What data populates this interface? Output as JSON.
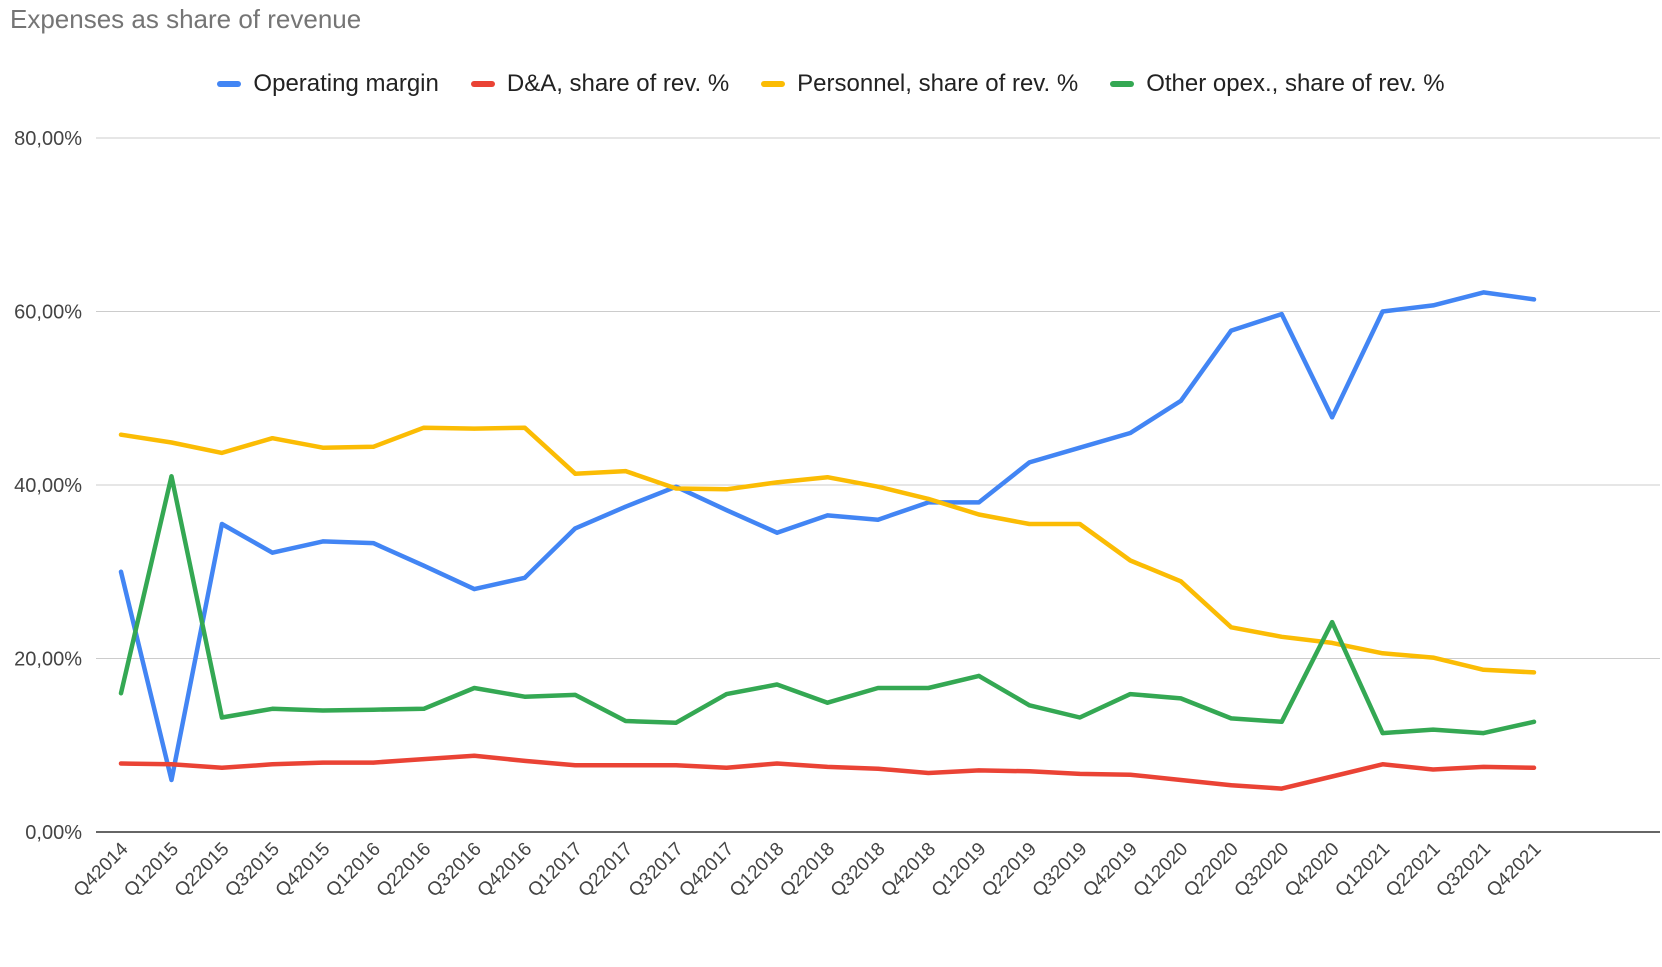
{
  "chart_data": {
    "type": "line",
    "title": "Expenses as share of revenue",
    "xlabel": "",
    "ylabel": "",
    "ylim": [
      0,
      80
    ],
    "y_ticks": [
      0,
      20,
      40,
      60,
      80
    ],
    "y_tick_labels": [
      "0,00%",
      "20,00%",
      "40,00%",
      "60,00%",
      "80,00%"
    ],
    "grid": true,
    "legend_position": "top",
    "categories": [
      "Q42014",
      "Q12015",
      "Q22015",
      "Q32015",
      "Q42015",
      "Q12016",
      "Q22016",
      "Q32016",
      "Q42016",
      "Q12017",
      "Q22017",
      "Q32017",
      "Q42017",
      "Q12018",
      "Q22018",
      "Q32018",
      "Q42018",
      "Q12019",
      "Q22019",
      "Q32019",
      "Q42019",
      "Q12020",
      "Q22020",
      "Q32020",
      "Q42020",
      "Q12021",
      "Q22021",
      "Q32021",
      "Q42021"
    ],
    "series": [
      {
        "name": "Operating margin",
        "color": "#4285F4",
        "values": [
          30,
          6,
          35.5,
          32.2,
          33.5,
          33.3,
          30.7,
          28,
          29.3,
          35,
          37.5,
          39.8,
          37.1,
          34.5,
          36.5,
          36,
          38,
          38,
          42.6,
          44.3,
          46,
          49.7,
          57.8,
          59.7,
          47.8,
          60,
          60.7,
          62.2,
          61.4
        ]
      },
      {
        "name": "D&A, share of rev. %",
        "color": "#EA4335",
        "values": [
          7.9,
          7.8,
          7.4,
          7.8,
          8,
          8,
          8.4,
          8.8,
          8.2,
          7.7,
          7.7,
          7.7,
          7.4,
          7.9,
          7.5,
          7.3,
          6.8,
          7.1,
          7.0,
          6.7,
          6.6,
          6,
          5.4,
          5,
          6.4,
          7.8,
          7.2,
          7.5,
          7.4
        ]
      },
      {
        "name": "Personnel, share of rev. %",
        "color": "#FBBC04",
        "values": [
          45.8,
          44.9,
          43.7,
          45.4,
          44.3,
          44.4,
          46.6,
          46.5,
          46.6,
          41.3,
          41.6,
          39.6,
          39.5,
          40.3,
          40.9,
          39.8,
          38.4,
          36.6,
          35.5,
          35.5,
          31.3,
          28.9,
          23.6,
          22.5,
          21.8,
          20.6,
          20.1,
          18.7,
          18.4
        ]
      },
      {
        "name": "Other opex., share of rev. %",
        "color": "#34A853",
        "values": [
          16,
          41,
          13.2,
          14.2,
          14,
          14.1,
          14.2,
          16.6,
          15.6,
          15.8,
          12.8,
          12.6,
          15.9,
          17,
          14.9,
          16.6,
          16.6,
          18,
          14.6,
          13.2,
          15.9,
          15.4,
          13.1,
          12.7,
          24.2,
          11.4,
          11.8,
          11.4,
          12.7
        ]
      }
    ]
  }
}
